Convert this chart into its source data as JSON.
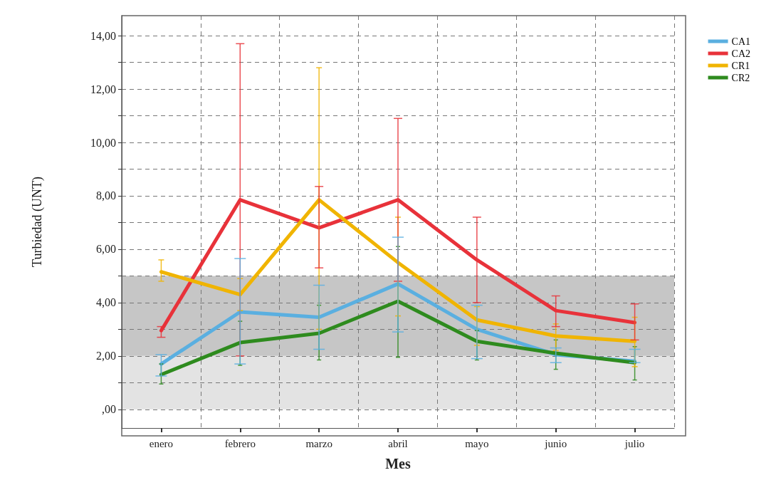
{
  "chart_data": {
    "type": "line",
    "xlabel": "Mes",
    "ylabel": "Turbiedad (UNT)",
    "categories": [
      "enero",
      "febrero",
      "marzo",
      "abril",
      "mayo",
      "junio",
      "julio"
    ],
    "series": [
      {
        "name": "CA1",
        "color": "#5aafe0",
        "values": [
          1.7,
          3.65,
          3.45,
          4.7,
          3.0,
          2.05,
          1.8
        ],
        "errors": [
          [
            1.25,
            2.05
          ],
          [
            1.7,
            5.65
          ],
          [
            2.25,
            4.65
          ],
          [
            2.9,
            6.45
          ],
          [
            1.9,
            3.9
          ],
          [
            1.75,
            2.3
          ],
          [
            1.75,
            2.25
          ]
        ]
      },
      {
        "name": "CA2",
        "color": "#e8323a",
        "values": [
          2.95,
          7.85,
          6.8,
          7.85,
          5.6,
          3.7,
          3.25
        ],
        "errors": [
          [
            2.7,
            3.1
          ],
          [
            2.0,
            13.7
          ],
          [
            5.3,
            8.35
          ],
          [
            4.8,
            10.9
          ],
          [
            4.0,
            7.2
          ],
          [
            3.1,
            4.25
          ],
          [
            2.6,
            3.95
          ]
        ]
      },
      {
        "name": "CR1",
        "color": "#f0b400",
        "values": [
          5.15,
          4.3,
          7.85,
          5.5,
          3.35,
          2.75,
          2.55
        ],
        "errors": [
          [
            4.8,
            5.6
          ],
          [
            3.7,
            4.9
          ],
          [
            3.0,
            12.8
          ],
          [
            3.5,
            7.2
          ],
          [
            2.4,
            3.85
          ],
          [
            2.2,
            3.2
          ],
          [
            1.6,
            3.45
          ]
        ]
      },
      {
        "name": "CR2",
        "color": "#2e8b1e",
        "values": [
          1.3,
          2.5,
          2.85,
          4.05,
          2.55,
          2.1,
          1.75
        ],
        "errors": [
          [
            0.95,
            1.7
          ],
          [
            1.65,
            3.3
          ],
          [
            1.85,
            3.9
          ],
          [
            1.95,
            6.1
          ],
          [
            1.85,
            2.95
          ],
          [
            1.5,
            2.6
          ],
          [
            1.1,
            2.35
          ]
        ]
      }
    ],
    "ylim": [
      -0.7,
      14.75
    ],
    "yticks": [
      {
        "value": 0,
        "label": ",00"
      },
      {
        "value": 1,
        "label": null
      },
      {
        "value": 2,
        "label": "2,00"
      },
      {
        "value": 3,
        "label": null
      },
      {
        "value": 4,
        "label": "4,00"
      },
      {
        "value": 5,
        "label": null
      },
      {
        "value": 6,
        "label": "6,00"
      },
      {
        "value": 7,
        "label": null
      },
      {
        "value": 8,
        "label": "8,00"
      },
      {
        "value": 9,
        "label": null
      },
      {
        "value": 10,
        "label": "10,00"
      },
      {
        "value": 11,
        "label": null
      },
      {
        "value": 12,
        "label": "12,00"
      },
      {
        "value": 13,
        "label": null
      },
      {
        "value": 14,
        "label": "14,00"
      }
    ],
    "bands": [
      {
        "axis": "y",
        "from": 0,
        "to": 2,
        "color": "#e3e3e3"
      },
      {
        "axis": "y",
        "from": 2,
        "to": 5,
        "color": "#c6c6c6"
      }
    ],
    "grid": true,
    "legend": "top right",
    "marker": "none",
    "line_style": "solid"
  }
}
